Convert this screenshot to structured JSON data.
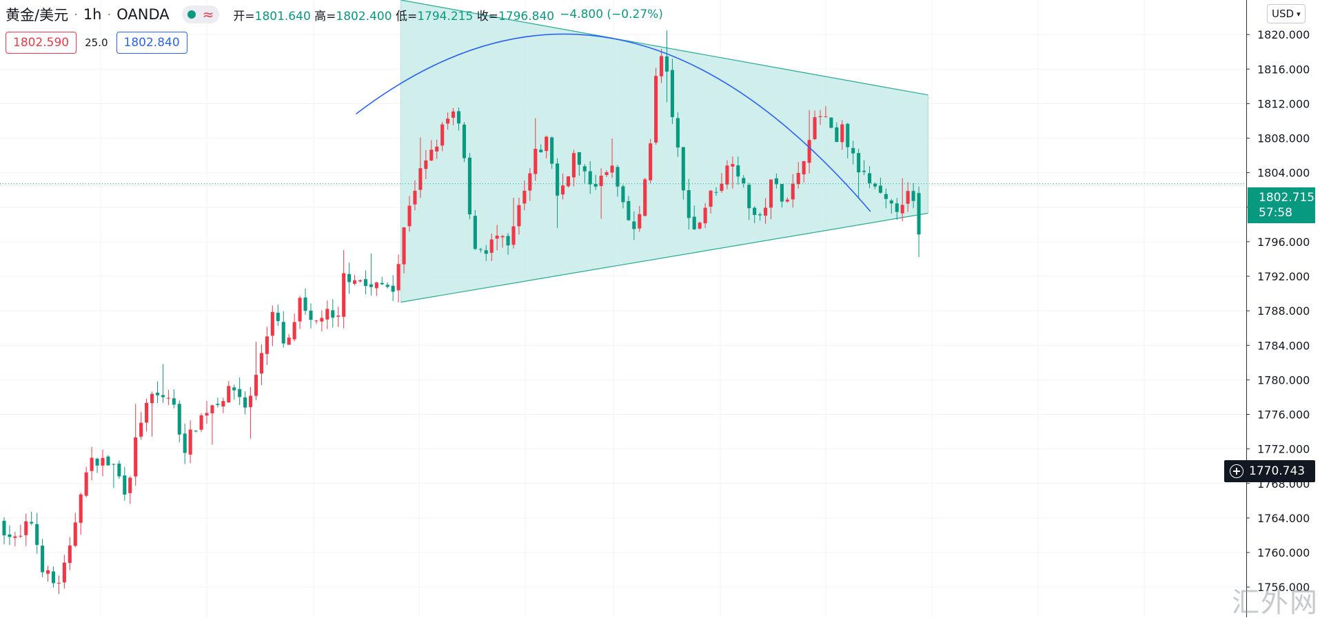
{
  "header": {
    "symbol": "黄金/美元",
    "separator": "·",
    "timeframe": "1h",
    "source": "OANDA",
    "ohlc": {
      "open_label": "开=",
      "open": "1801.640",
      "high_label": "高=",
      "high": "1802.400",
      "low_label": "低=",
      "low": "1794.215",
      "close_label": "收=",
      "close": "1796.840",
      "change": "−4.800 (−0.27%)"
    }
  },
  "prices": {
    "sell": "1802.590",
    "spread": "25.0",
    "buy": "1802.840"
  },
  "currency": "USD",
  "last_price": {
    "value": "1802.715",
    "countdown": "57:58"
  },
  "crosshair_price": "1770.743",
  "watermark": "汇外网",
  "colors": {
    "up": "#f23645",
    "down": "#089981",
    "pattern_fill": "#c8ebe7",
    "pattern_line": "#22ab94",
    "arc": "#2962ff"
  },
  "chart_data": {
    "type": "candlestick",
    "ylim": [
      1752.5,
      1824.0
    ],
    "y_ticks": [
      {
        "v": 1820,
        "label": "1820.000"
      },
      {
        "v": 1816,
        "label": "1816.000"
      },
      {
        "v": 1812,
        "label": "1812.000"
      },
      {
        "v": 1808,
        "label": "1808.000"
      },
      {
        "v": 1804,
        "label": "1804.000"
      },
      {
        "v": 1800,
        "label": "1800.000"
      },
      {
        "v": 1796,
        "label": "1796.000"
      },
      {
        "v": 1792,
        "label": "1792.000"
      },
      {
        "v": 1788,
        "label": "1788.000"
      },
      {
        "v": 1784,
        "label": "1784.000"
      },
      {
        "v": 1780,
        "label": "1780.000"
      },
      {
        "v": 1776,
        "label": "1776.000"
      },
      {
        "v": 1772,
        "label": "1772.000"
      },
      {
        "v": 1768,
        "label": "1768.000"
      },
      {
        "v": 1764,
        "label": "1764.000"
      },
      {
        "v": 1760,
        "label": "1760.000"
      },
      {
        "v": 1756,
        "label": "1756.000"
      }
    ],
    "candle_count": 168,
    "waypoints": [
      [
        0,
        1763.5
      ],
      [
        6,
        1761
      ],
      [
        10,
        1764
      ],
      [
        14,
        1758
      ],
      [
        18,
        1756
      ],
      [
        22,
        1759.5
      ],
      [
        26,
        1768
      ],
      [
        30,
        1771
      ],
      [
        36,
        1770
      ],
      [
        40,
        1767
      ],
      [
        44,
        1775
      ],
      [
        48,
        1778
      ],
      [
        54,
        1778
      ],
      [
        58,
        1772
      ],
      [
        62,
        1775
      ],
      [
        66,
        1777
      ],
      [
        70,
        1778
      ],
      [
        74,
        1779
      ],
      [
        78,
        1776.5
      ],
      [
        82,
        1783
      ],
      [
        86,
        1788
      ],
      [
        90,
        1783
      ],
      [
        94,
        1789
      ],
      [
        98,
        1786
      ],
      [
        102,
        1788
      ],
      [
        106,
        1786
      ],
      [
        108,
        1792
      ],
      [
        112,
        1792
      ],
      [
        116,
        1790.5
      ],
      [
        120,
        1791
      ],
      [
        124,
        1791
      ],
      [
        128,
        1800
      ],
      [
        132,
        1804
      ],
      [
        136,
        1806.5
      ],
      [
        140,
        1810
      ],
      [
        143,
        1811
      ],
      [
        146,
        1805
      ],
      [
        148,
        1796
      ],
      [
        152,
        1795
      ],
      [
        156,
        1796.5
      ],
      [
        160,
        1795
      ],
      [
        162,
        1799
      ],
      [
        165,
        1802
      ],
      [
        168,
        1806
      ],
      [
        172,
        1808
      ],
      [
        175,
        1801
      ],
      [
        180,
        1806
      ],
      [
        184,
        1803
      ],
      [
        188,
        1803
      ],
      [
        192,
        1804.5
      ],
      [
        196,
        1799
      ],
      [
        200,
        1797
      ],
      [
        204,
        1808
      ],
      [
        206,
        1816
      ],
      [
        208,
        1818
      ],
      [
        210,
        1813
      ],
      [
        212,
        1808
      ],
      [
        214,
        1802
      ],
      [
        218,
        1797
      ],
      [
        222,
        1801
      ],
      [
        226,
        1803
      ],
      [
        230,
        1806
      ],
      [
        234,
        1801
      ],
      [
        238,
        1798
      ],
      [
        242,
        1803
      ],
      [
        246,
        1801
      ],
      [
        250,
        1803
      ],
      [
        254,
        1809
      ],
      [
        258,
        1811
      ],
      [
        262,
        1807
      ],
      [
        264,
        1809
      ],
      [
        268,
        1805
      ],
      [
        272,
        1803
      ],
      [
        276,
        1801
      ],
      [
        280,
        1799.5
      ],
      [
        284,
        1801.5
      ],
      [
        288,
        1799.5
      ]
    ],
    "x_range_bars": [
      0,
      288
    ],
    "last_candle": {
      "open": 1801.64,
      "high": 1802.4,
      "low": 1794.215,
      "close": 1796.84
    },
    "triangle": {
      "top_line": [
        [
          125,
          1824
        ],
        [
          290,
          1813
        ]
      ],
      "bottom_line": [
        [
          125,
          1789
        ],
        [
          290,
          1799.3
        ]
      ]
    },
    "arc": {
      "start": [
        111,
        1810.8
      ],
      "peak": [
        192,
        1819.5
      ],
      "end": [
        272,
        1799.5
      ]
    },
    "grid": true,
    "legend": "none"
  }
}
